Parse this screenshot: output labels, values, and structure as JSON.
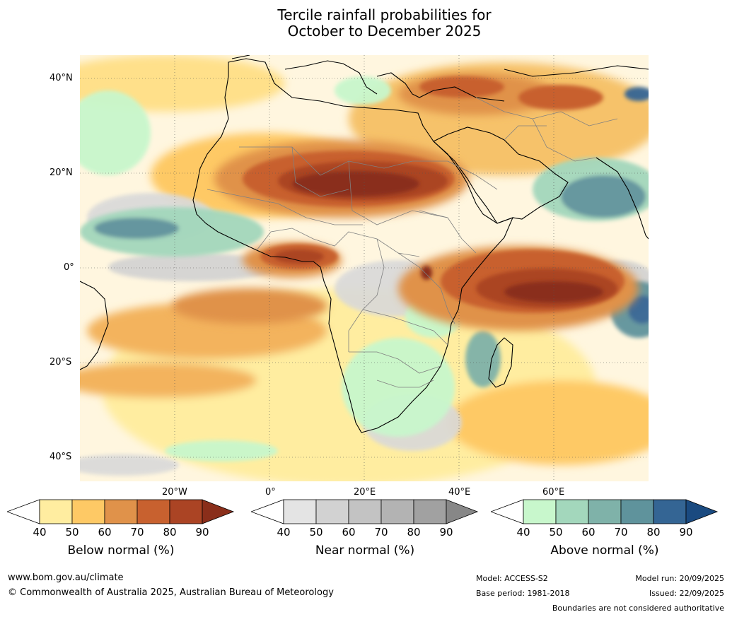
{
  "title": {
    "line1": "Tercile rainfall probabilities for",
    "line2": "October to December 2025"
  },
  "map": {
    "lat_labels": [
      "40°N",
      "20°N",
      "0°",
      "20°S",
      "40°S"
    ],
    "lon_labels": [
      "20°W",
      "0°",
      "20°E",
      "40°E",
      "60°E"
    ],
    "region": "Africa and surrounding oceans"
  },
  "colorbars": [
    {
      "title": "Below normal (%)",
      "ticks": [
        "40",
        "50",
        "60",
        "70",
        "80",
        "90"
      ],
      "colors": [
        "#ffeda0",
        "#fec965",
        "#e0924a",
        "#c8612f",
        "#ab4424",
        "#8a2e1a"
      ]
    },
    {
      "title": "Near normal (%)",
      "ticks": [
        "40",
        "50",
        "60",
        "70",
        "80",
        "90"
      ],
      "colors": [
        "#e4e4e4",
        "#d2d2d2",
        "#c3c3c3",
        "#b3b3b3",
        "#a1a1a1",
        "#878787"
      ]
    },
    {
      "title": "Above normal (%)",
      "ticks": [
        "40",
        "50",
        "60",
        "70",
        "80",
        "90"
      ],
      "colors": [
        "#c8f7cc",
        "#a3d7bc",
        "#7fb2a9",
        "#5f939c",
        "#346594",
        "#1a4a80"
      ]
    }
  ],
  "footer": {
    "website": "www.bom.gov.au/climate",
    "copyright": "© Commonwealth of Australia 2025, Australian Bureau of Meteorology",
    "model": "Model: ACCESS-S2",
    "base_period": "Base period: 1981-2018",
    "model_run": "Model run: 20/09/2025",
    "issued": "Issued: 22/09/2025",
    "disclaimer": "Boundaries are not considered authoritative"
  }
}
